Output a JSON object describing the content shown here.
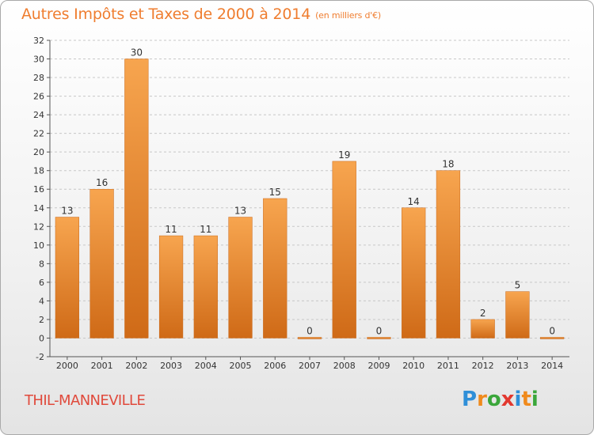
{
  "header": {
    "title": "Autres Impôts et Taxes de 2000 à 2014",
    "unit": "(en milliers d'€)"
  },
  "footer": {
    "commune": "THIL-MANNEVILLE",
    "logo_letters": [
      "P",
      "r",
      "o",
      "x",
      "i",
      "t",
      "i"
    ],
    "logo_colors": [
      "#2f8fd8",
      "#f08a1c",
      "#3aa63a",
      "#e2382f",
      "#2f8fd8",
      "#f08a1c",
      "#3aa63a"
    ]
  },
  "colors": {
    "bar_light": "#f7a54f",
    "bar_dark": "#cf6a17",
    "title": "#ef7d2f",
    "commune": "#e04a3c",
    "grid": "#c8c8c8"
  },
  "chart_data": {
    "type": "bar",
    "title": "Autres Impôts et Taxes de 2000 à 2014",
    "xlabel": "",
    "ylabel": "",
    "categories": [
      "2000",
      "2001",
      "2002",
      "2003",
      "2004",
      "2005",
      "2006",
      "2007",
      "2008",
      "2009",
      "2010",
      "2011",
      "2012",
      "2013",
      "2014"
    ],
    "values": [
      13,
      16,
      30,
      11,
      11,
      13,
      15,
      0,
      19,
      0,
      14,
      18,
      2,
      5,
      0
    ],
    "ylim": [
      -2,
      32
    ],
    "yticks": [
      -2,
      0,
      2,
      4,
      6,
      8,
      10,
      12,
      14,
      16,
      18,
      20,
      22,
      24,
      26,
      28,
      30,
      32
    ],
    "grid": "horizontal dashed"
  }
}
